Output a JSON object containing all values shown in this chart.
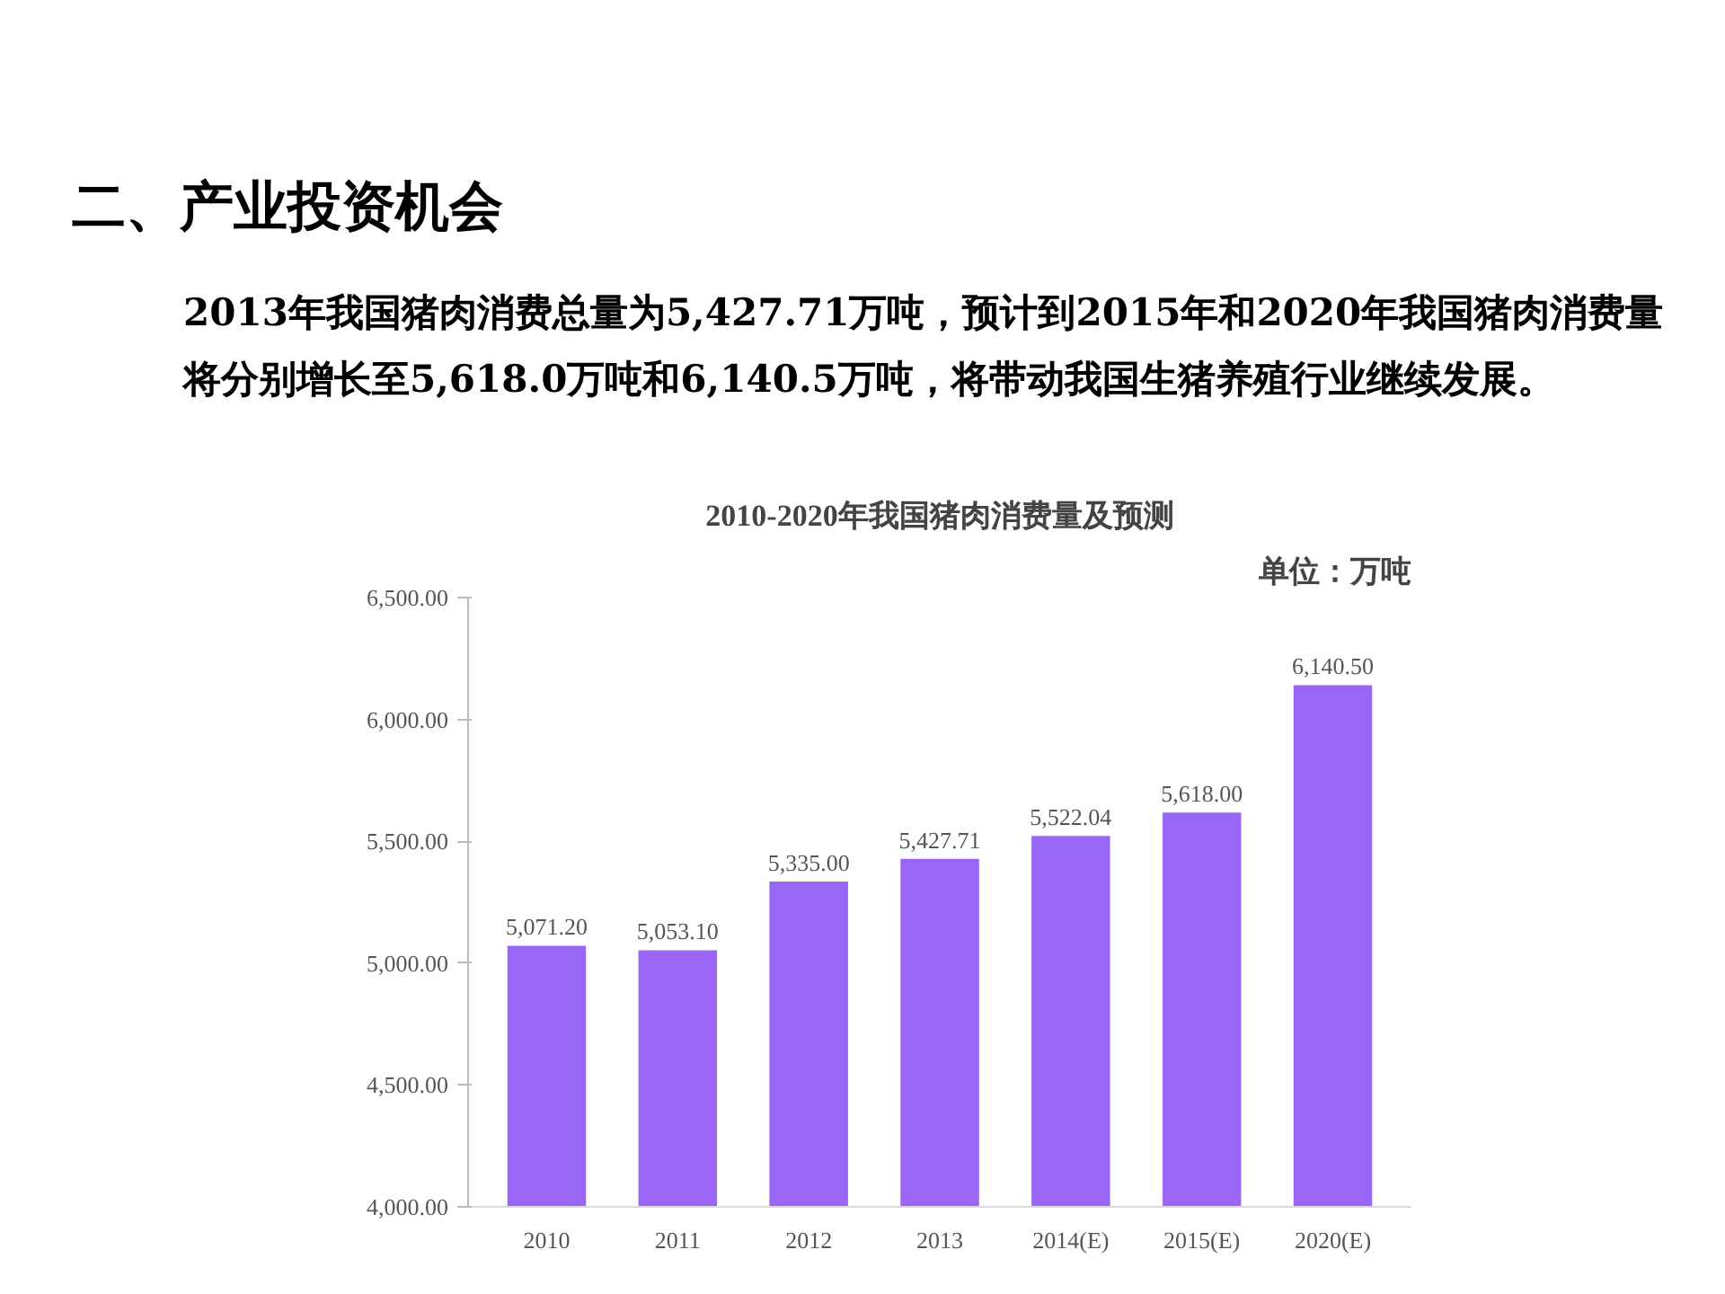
{
  "chart_data": {
    "type": "bar",
    "title": "2010-2020年我国猪肉消费量及预测",
    "annotations": [
      "二、产业投资机会",
      "2013年我国猪肉消费总量为5,427.71万吨，预计到2015年和2020年我国猪肉消费量将分别增长至5,618.0万吨和6,140.5万吨，将带动我国生猪养殖行业继续发展。",
      "单位：万吨"
    ],
    "categories": [
      "2010",
      "2011",
      "2012",
      "2013",
      "2014(E)",
      "2015(E)",
      "2020(E)"
    ],
    "values": [
      5071.2,
      5053.1,
      5335.0,
      5427.71,
      5522.04,
      5618.0,
      6140.5
    ],
    "value_labels": [
      "5,071.20",
      "5,053.10",
      "5,335.00",
      "5,427.71",
      "5,522.04",
      "5,618.00",
      "6,140.50"
    ],
    "color": "#9966f5",
    "ylim": [
      4000,
      6500
    ],
    "yticks": [
      {
        "value": 4000,
        "label": "4,000.00"
      },
      {
        "value": 4500,
        "label": "4,500.00"
      },
      {
        "value": 5000,
        "label": "5,000.00"
      },
      {
        "value": 5500,
        "label": "5,500.00"
      },
      {
        "value": 6000,
        "label": "6,000.00"
      },
      {
        "value": 6500,
        "label": "6,500.00"
      }
    ],
    "grid": false
  }
}
